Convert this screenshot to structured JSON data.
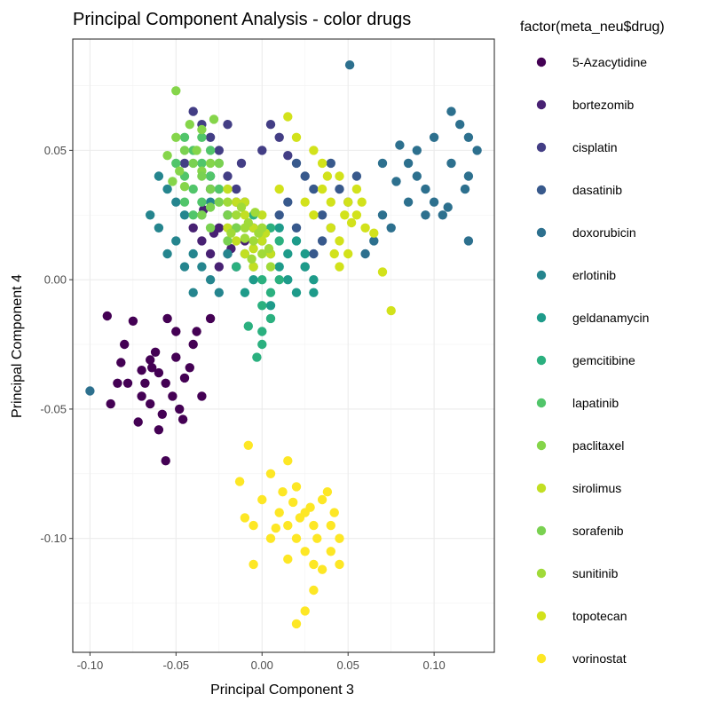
{
  "chart_data": {
    "type": "scatter",
    "title": "Principal Component Analysis - color drugs",
    "xlabel": "Principal Component 3",
    "ylabel": "Principal Component 4",
    "xlim": [
      -0.11,
      0.135
    ],
    "ylim": [
      -0.144,
      0.093
    ],
    "x_ticks": [
      -0.1,
      -0.05,
      0.0,
      0.05,
      0.1
    ],
    "x_tick_labels": [
      "-0.10",
      "-0.05",
      "0.00",
      "0.05",
      "0.10"
    ],
    "y_ticks": [
      -0.1,
      -0.05,
      0.0,
      0.05
    ],
    "y_tick_labels": [
      "-0.10",
      "-0.05",
      "0.00",
      "0.05"
    ],
    "grid": true,
    "legend": {
      "title": "factor(meta_neu$drug)",
      "placement": "right"
    },
    "series": [
      {
        "name": "5-Azacytidine",
        "color": "#440154",
        "points": [
          [
            -0.09,
            -0.014
          ],
          [
            -0.08,
            -0.025
          ],
          [
            -0.088,
            -0.048
          ],
          [
            -0.082,
            -0.032
          ],
          [
            -0.075,
            -0.016
          ],
          [
            -0.07,
            -0.035
          ],
          [
            -0.07,
            -0.045
          ],
          [
            -0.065,
            -0.031
          ],
          [
            -0.062,
            -0.028
          ],
          [
            -0.06,
            -0.036
          ],
          [
            -0.058,
            -0.052
          ],
          [
            -0.056,
            -0.04
          ],
          [
            -0.052,
            -0.045
          ],
          [
            -0.05,
            -0.03
          ],
          [
            -0.048,
            -0.05
          ],
          [
            -0.045,
            -0.038
          ],
          [
            -0.042,
            -0.034
          ],
          [
            -0.06,
            -0.058
          ],
          [
            -0.056,
            -0.07
          ],
          [
            -0.065,
            -0.048
          ],
          [
            -0.068,
            -0.04
          ],
          [
            -0.078,
            -0.04
          ],
          [
            -0.084,
            -0.04
          ],
          [
            -0.072,
            -0.055
          ],
          [
            -0.064,
            -0.034
          ],
          [
            -0.05,
            -0.02
          ],
          [
            -0.04,
            -0.025
          ],
          [
            -0.035,
            -0.045
          ],
          [
            -0.038,
            -0.02
          ],
          [
            -0.03,
            -0.015
          ],
          [
            -0.055,
            -0.015
          ],
          [
            -0.046,
            -0.054
          ]
        ]
      },
      {
        "name": "bortezomib",
        "color": "#482173",
        "points": [
          [
            -0.03,
            0.035
          ],
          [
            -0.025,
            0.02
          ],
          [
            -0.035,
            0.015
          ],
          [
            -0.02,
            0.01
          ],
          [
            -0.015,
            0.005
          ],
          [
            -0.01,
            0.015
          ],
          [
            -0.005,
            0.02
          ],
          [
            -0.03,
            0.01
          ],
          [
            -0.025,
            0.005
          ],
          [
            -0.02,
            0.025
          ],
          [
            -0.04,
            0.02
          ],
          [
            -0.015,
            0.03
          ],
          [
            -0.028,
            0.018
          ],
          [
            -0.018,
            0.012
          ],
          [
            -0.034,
            0.027
          ]
        ]
      },
      {
        "name": "cisplatin",
        "color": "#433E85",
        "points": [
          [
            -0.04,
            0.065
          ],
          [
            -0.035,
            0.06
          ],
          [
            -0.03,
            0.055
          ],
          [
            -0.025,
            0.05
          ],
          [
            -0.02,
            0.04
          ],
          [
            -0.015,
            0.035
          ],
          [
            -0.01,
            0.03
          ],
          [
            -0.045,
            0.045
          ],
          [
            -0.03,
            0.04
          ],
          [
            -0.02,
            0.06
          ],
          [
            0.005,
            0.06
          ],
          [
            0.01,
            0.055
          ],
          [
            0.015,
            0.048
          ],
          [
            -0.012,
            0.045
          ],
          [
            0.0,
            0.05
          ]
        ]
      },
      {
        "name": "dasatinib",
        "color": "#38598C",
        "points": [
          [
            0.02,
            0.045
          ],
          [
            0.025,
            0.04
          ],
          [
            0.03,
            0.035
          ],
          [
            0.015,
            0.03
          ],
          [
            0.035,
            0.025
          ],
          [
            0.04,
            0.02
          ],
          [
            0.045,
            0.035
          ],
          [
            0.05,
            0.03
          ],
          [
            0.055,
            0.04
          ],
          [
            0.03,
            0.01
          ],
          [
            0.025,
            0.005
          ],
          [
            0.035,
            0.015
          ],
          [
            0.02,
            0.02
          ],
          [
            0.01,
            0.025
          ],
          [
            0.04,
            0.045
          ]
        ]
      },
      {
        "name": "doxorubicin",
        "color": "#2D708E",
        "points": [
          [
            0.051,
            0.083
          ],
          [
            0.08,
            0.052
          ],
          [
            0.085,
            0.045
          ],
          [
            0.09,
            0.04
          ],
          [
            0.095,
            0.035
          ],
          [
            0.1,
            0.03
          ],
          [
            0.105,
            0.025
          ],
          [
            0.11,
            0.065
          ],
          [
            0.115,
            0.06
          ],
          [
            0.12,
            0.055
          ],
          [
            0.125,
            0.05
          ],
          [
            0.11,
            0.045
          ],
          [
            0.12,
            0.04
          ],
          [
            0.07,
            0.025
          ],
          [
            0.075,
            0.02
          ],
          [
            0.065,
            0.015
          ],
          [
            0.06,
            0.01
          ],
          [
            0.1,
            0.055
          ],
          [
            0.09,
            0.05
          ],
          [
            0.108,
            0.028
          ],
          [
            0.118,
            0.035
          ],
          [
            0.085,
            0.03
          ],
          [
            0.07,
            0.045
          ],
          [
            0.078,
            0.038
          ],
          [
            0.12,
            0.015
          ],
          [
            0.095,
            0.025
          ],
          [
            -0.1,
            -0.043
          ]
        ]
      },
      {
        "name": "erlotinib",
        "color": "#25858E",
        "points": [
          [
            -0.06,
            0.04
          ],
          [
            -0.055,
            0.035
          ],
          [
            -0.05,
            0.03
          ],
          [
            -0.045,
            0.025
          ],
          [
            -0.04,
            0.01
          ],
          [
            -0.035,
            0.005
          ],
          [
            -0.03,
            0.0
          ],
          [
            -0.025,
            -0.005
          ],
          [
            -0.02,
            0.01
          ],
          [
            -0.015,
            0.02
          ],
          [
            -0.06,
            0.02
          ],
          [
            -0.065,
            0.025
          ],
          [
            -0.05,
            0.015
          ],
          [
            -0.045,
            0.005
          ],
          [
            -0.04,
            -0.005
          ],
          [
            -0.035,
            0.025
          ],
          [
            -0.055,
            0.01
          ],
          [
            -0.03,
            0.03
          ]
        ]
      },
      {
        "name": "geldanamycin",
        "color": "#1E9B8A",
        "points": [
          [
            0.0,
            0.015
          ],
          [
            0.005,
            0.01
          ],
          [
            0.01,
            0.005
          ],
          [
            0.015,
            0.0
          ],
          [
            0.02,
            -0.005
          ],
          [
            0.025,
            0.005
          ],
          [
            0.03,
            0.0
          ],
          [
            -0.005,
            0.0
          ],
          [
            -0.01,
            -0.005
          ],
          [
            0.005,
            -0.01
          ],
          [
            0.01,
            0.02
          ],
          [
            0.02,
            0.015
          ],
          [
            0.025,
            0.01
          ],
          [
            0.03,
            -0.005
          ],
          [
            0.015,
            0.01
          ],
          [
            -0.005,
            0.02
          ]
        ]
      },
      {
        "name": "gemcitibine",
        "color": "#2BB07F",
        "points": [
          [
            -0.005,
            0.005
          ],
          [
            0.0,
            0.0
          ],
          [
            0.005,
            -0.005
          ],
          [
            0.01,
            0.0
          ],
          [
            -0.01,
            0.01
          ],
          [
            -0.015,
            0.005
          ],
          [
            0.0,
            -0.01
          ],
          [
            0.005,
            0.02
          ],
          [
            -0.005,
            0.025
          ],
          [
            0.01,
            0.015
          ],
          [
            0.0,
            -0.02
          ],
          [
            -0.003,
            -0.03
          ],
          [
            0.0,
            -0.025
          ],
          [
            0.005,
            -0.015
          ],
          [
            -0.008,
            -0.018
          ]
        ]
      },
      {
        "name": "lapatinib",
        "color": "#51C56A",
        "points": [
          [
            -0.045,
            0.055
          ],
          [
            -0.04,
            0.05
          ],
          [
            -0.035,
            0.045
          ],
          [
            -0.03,
            0.04
          ],
          [
            -0.025,
            0.035
          ],
          [
            -0.045,
            0.04
          ],
          [
            -0.05,
            0.045
          ],
          [
            -0.04,
            0.035
          ],
          [
            -0.035,
            0.055
          ],
          [
            -0.03,
            0.05
          ],
          [
            -0.025,
            0.045
          ],
          [
            -0.04,
            0.025
          ],
          [
            -0.045,
            0.03
          ],
          [
            -0.035,
            0.03
          ]
        ]
      },
      {
        "name": "paclitaxel",
        "color": "#85D54A",
        "points": [
          [
            -0.05,
            0.073
          ],
          [
            -0.05,
            0.055
          ],
          [
            -0.042,
            0.06
          ],
          [
            -0.035,
            0.058
          ],
          [
            -0.028,
            0.062
          ],
          [
            -0.055,
            0.048
          ],
          [
            -0.048,
            0.042
          ],
          [
            -0.035,
            0.042
          ],
          [
            -0.045,
            0.036
          ],
          [
            -0.038,
            0.05
          ],
          [
            -0.03,
            0.045
          ],
          [
            -0.052,
            0.038
          ]
        ]
      },
      {
        "name": "sirolimus",
        "color": "#C2DF23",
        "points": [
          [
            -0.02,
            0.035
          ],
          [
            -0.015,
            0.03
          ],
          [
            -0.01,
            0.025
          ],
          [
            -0.005,
            0.02
          ],
          [
            0.0,
            0.015
          ],
          [
            -0.02,
            0.02
          ],
          [
            -0.015,
            0.015
          ],
          [
            -0.01,
            0.01
          ],
          [
            -0.005,
            0.005
          ],
          [
            0.0,
            0.025
          ],
          [
            0.005,
            0.01
          ],
          [
            -0.01,
            0.03
          ],
          [
            -0.025,
            0.03
          ],
          [
            -0.015,
            0.02
          ],
          [
            -0.005,
            0.012
          ],
          [
            0.002,
            0.018
          ]
        ]
      },
      {
        "name": "sorafenib",
        "color": "#7AD151",
        "points": [
          [
            -0.03,
            0.035
          ],
          [
            -0.025,
            0.03
          ],
          [
            -0.02,
            0.025
          ],
          [
            -0.015,
            0.02
          ],
          [
            -0.035,
            0.025
          ],
          [
            -0.03,
            0.02
          ],
          [
            -0.02,
            0.015
          ],
          [
            -0.04,
            0.045
          ],
          [
            -0.035,
            0.04
          ],
          [
            -0.025,
            0.045
          ],
          [
            -0.045,
            0.05
          ],
          [
            -0.03,
            0.028
          ]
        ]
      },
      {
        "name": "sunitinib",
        "color": "#A0DA39",
        "points": [
          [
            -0.015,
            0.025
          ],
          [
            -0.01,
            0.02
          ],
          [
            -0.005,
            0.015
          ],
          [
            0.0,
            0.01
          ],
          [
            0.005,
            0.005
          ],
          [
            -0.02,
            0.03
          ],
          [
            -0.012,
            0.028
          ],
          [
            -0.008,
            0.022
          ],
          [
            -0.002,
            0.018
          ],
          [
            0.004,
            0.012
          ],
          [
            -0.018,
            0.018
          ],
          [
            -0.006,
            0.008
          ],
          [
            0.0,
            0.02
          ],
          [
            -0.01,
            0.016
          ],
          [
            -0.004,
            0.026
          ]
        ]
      },
      {
        "name": "topotecan",
        "color": "#D2E21B",
        "points": [
          [
            0.015,
            0.063
          ],
          [
            0.02,
            0.055
          ],
          [
            0.03,
            0.05
          ],
          [
            0.035,
            0.045
          ],
          [
            0.045,
            0.04
          ],
          [
            0.05,
            0.03
          ],
          [
            0.055,
            0.025
          ],
          [
            0.04,
            0.02
          ],
          [
            0.045,
            0.015
          ],
          [
            0.05,
            0.01
          ],
          [
            0.035,
            0.035
          ],
          [
            0.03,
            0.025
          ],
          [
            0.025,
            0.03
          ],
          [
            0.04,
            0.03
          ],
          [
            0.055,
            0.035
          ],
          [
            0.06,
            0.02
          ],
          [
            0.065,
            0.018
          ],
          [
            0.07,
            0.003
          ],
          [
            0.075,
            -0.012
          ],
          [
            0.045,
            0.005
          ],
          [
            0.052,
            0.022
          ],
          [
            0.058,
            0.03
          ],
          [
            0.038,
            0.04
          ],
          [
            0.048,
            0.025
          ],
          [
            0.01,
            0.035
          ],
          [
            0.042,
            0.01
          ]
        ]
      },
      {
        "name": "vorinostat",
        "color": "#FDE725",
        "points": [
          [
            -0.008,
            -0.064
          ],
          [
            -0.013,
            -0.078
          ],
          [
            0.005,
            -0.075
          ],
          [
            0.015,
            -0.07
          ],
          [
            0.02,
            -0.08
          ],
          [
            0.025,
            -0.09
          ],
          [
            0.03,
            -0.095
          ],
          [
            0.035,
            -0.085
          ],
          [
            0.04,
            -0.095
          ],
          [
            0.045,
            -0.1
          ],
          [
            0.0,
            -0.085
          ],
          [
            -0.005,
            -0.095
          ],
          [
            0.005,
            -0.1
          ],
          [
            0.01,
            -0.09
          ],
          [
            0.015,
            -0.095
          ],
          [
            0.02,
            -0.1
          ],
          [
            0.025,
            -0.105
          ],
          [
            0.03,
            -0.11
          ],
          [
            0.035,
            -0.112
          ],
          [
            0.04,
            -0.105
          ],
          [
            0.045,
            -0.11
          ],
          [
            0.03,
            -0.12
          ],
          [
            0.025,
            -0.128
          ],
          [
            0.02,
            -0.133
          ],
          [
            -0.005,
            -0.11
          ],
          [
            0.015,
            -0.108
          ],
          [
            0.028,
            -0.088
          ],
          [
            -0.01,
            -0.092
          ],
          [
            0.012,
            -0.082
          ],
          [
            0.022,
            -0.092
          ],
          [
            0.038,
            -0.082
          ],
          [
            0.042,
            -0.09
          ],
          [
            0.018,
            -0.086
          ],
          [
            0.008,
            -0.096
          ],
          [
            0.032,
            -0.1
          ]
        ]
      }
    ]
  }
}
